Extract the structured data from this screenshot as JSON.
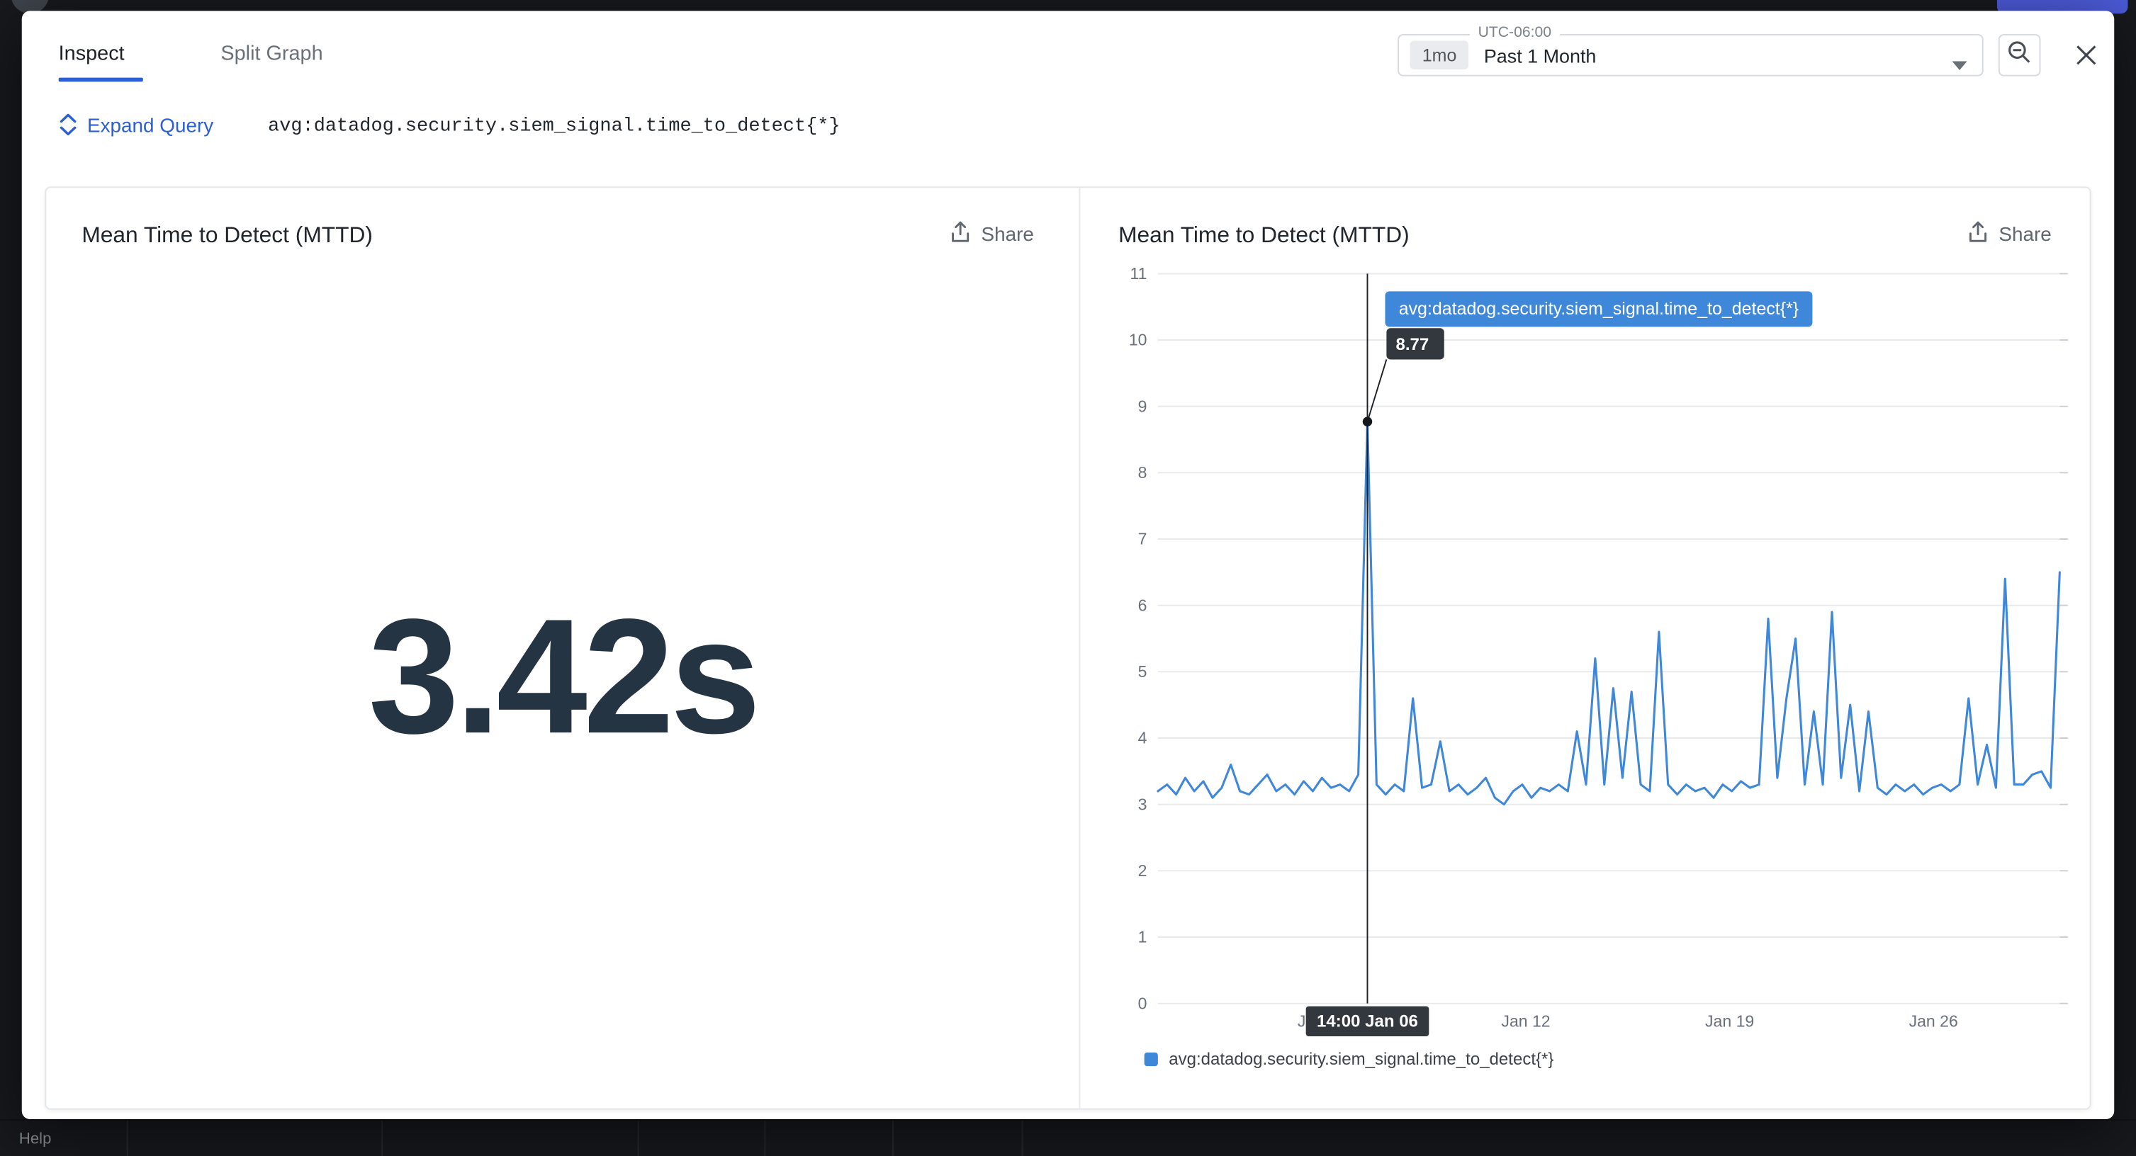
{
  "page": {
    "help_label": "Help"
  },
  "colors": {
    "accent": "#2c5fd4",
    "series": "#3f87d9",
    "badge_dark": "#33383e",
    "value_text": "#253442"
  },
  "modal": {
    "tabs": [
      {
        "label": "Inspect",
        "active": true
      },
      {
        "label": "Split Graph",
        "active": false
      }
    ],
    "time_picker": {
      "timezone": "UTC-06:00",
      "badge": "1mo",
      "label": "Past 1 Month"
    },
    "query": {
      "expand_label": "Expand Query",
      "text": "avg:datadog.security.siem_signal.time_to_detect{*}"
    },
    "panels": {
      "left": {
        "title": "Mean Time to Detect (MTTD)",
        "share_label": "Share",
        "value": "3.42s"
      },
      "right": {
        "title": "Mean Time to Detect (MTTD)",
        "share_label": "Share"
      }
    }
  },
  "chart_data": {
    "type": "line",
    "title": "Mean Time to Detect (MTTD)",
    "ylabel": "",
    "xlabel": "",
    "ylim": [
      0,
      11
    ],
    "y_ticks": [
      0,
      1,
      2,
      3,
      4,
      5,
      6,
      7,
      8,
      9,
      10,
      11
    ],
    "x_ticks": [
      {
        "label": "Jan 05",
        "pos": 0.182
      },
      {
        "label": "Jan 12",
        "pos": 0.408
      },
      {
        "label": "Jan 19",
        "pos": 0.634
      },
      {
        "label": "Jan 26",
        "pos": 0.86
      }
    ],
    "grid": true,
    "legend_position": "bottom",
    "series": [
      {
        "name": "avg:datadog.security.siem_signal.time_to_detect{*}",
        "values": [
          3.2,
          3.3,
          3.15,
          3.4,
          3.2,
          3.35,
          3.1,
          3.25,
          3.6,
          3.2,
          3.15,
          3.3,
          3.45,
          3.2,
          3.3,
          3.15,
          3.35,
          3.2,
          3.4,
          3.25,
          3.3,
          3.2,
          3.45,
          8.77,
          3.3,
          3.15,
          3.3,
          3.2,
          4.6,
          3.25,
          3.3,
          3.95,
          3.2,
          3.3,
          3.15,
          3.25,
          3.4,
          3.1,
          3.0,
          3.2,
          3.3,
          3.1,
          3.25,
          3.2,
          3.3,
          3.2,
          4.1,
          3.3,
          5.2,
          3.3,
          4.75,
          3.4,
          4.7,
          3.3,
          3.2,
          5.6,
          3.3,
          3.15,
          3.3,
          3.2,
          3.25,
          3.1,
          3.3,
          3.2,
          3.35,
          3.25,
          3.3,
          5.8,
          3.4,
          4.6,
          5.5,
          3.3,
          4.4,
          3.3,
          5.9,
          3.4,
          4.5,
          3.2,
          4.4,
          3.25,
          3.15,
          3.3,
          3.2,
          3.3,
          3.15,
          3.25,
          3.3,
          3.2,
          3.3,
          4.6,
          3.3,
          3.9,
          3.25,
          6.4,
          3.3,
          3.3,
          3.45,
          3.5,
          3.25,
          6.5
        ]
      }
    ],
    "hover": {
      "index": 23,
      "value": 8.77,
      "value_label": "8.77",
      "x_label": "14:00 Jan 06",
      "series_label": "avg:datadog.security.siem_signal.time_to_detect{*}"
    }
  }
}
